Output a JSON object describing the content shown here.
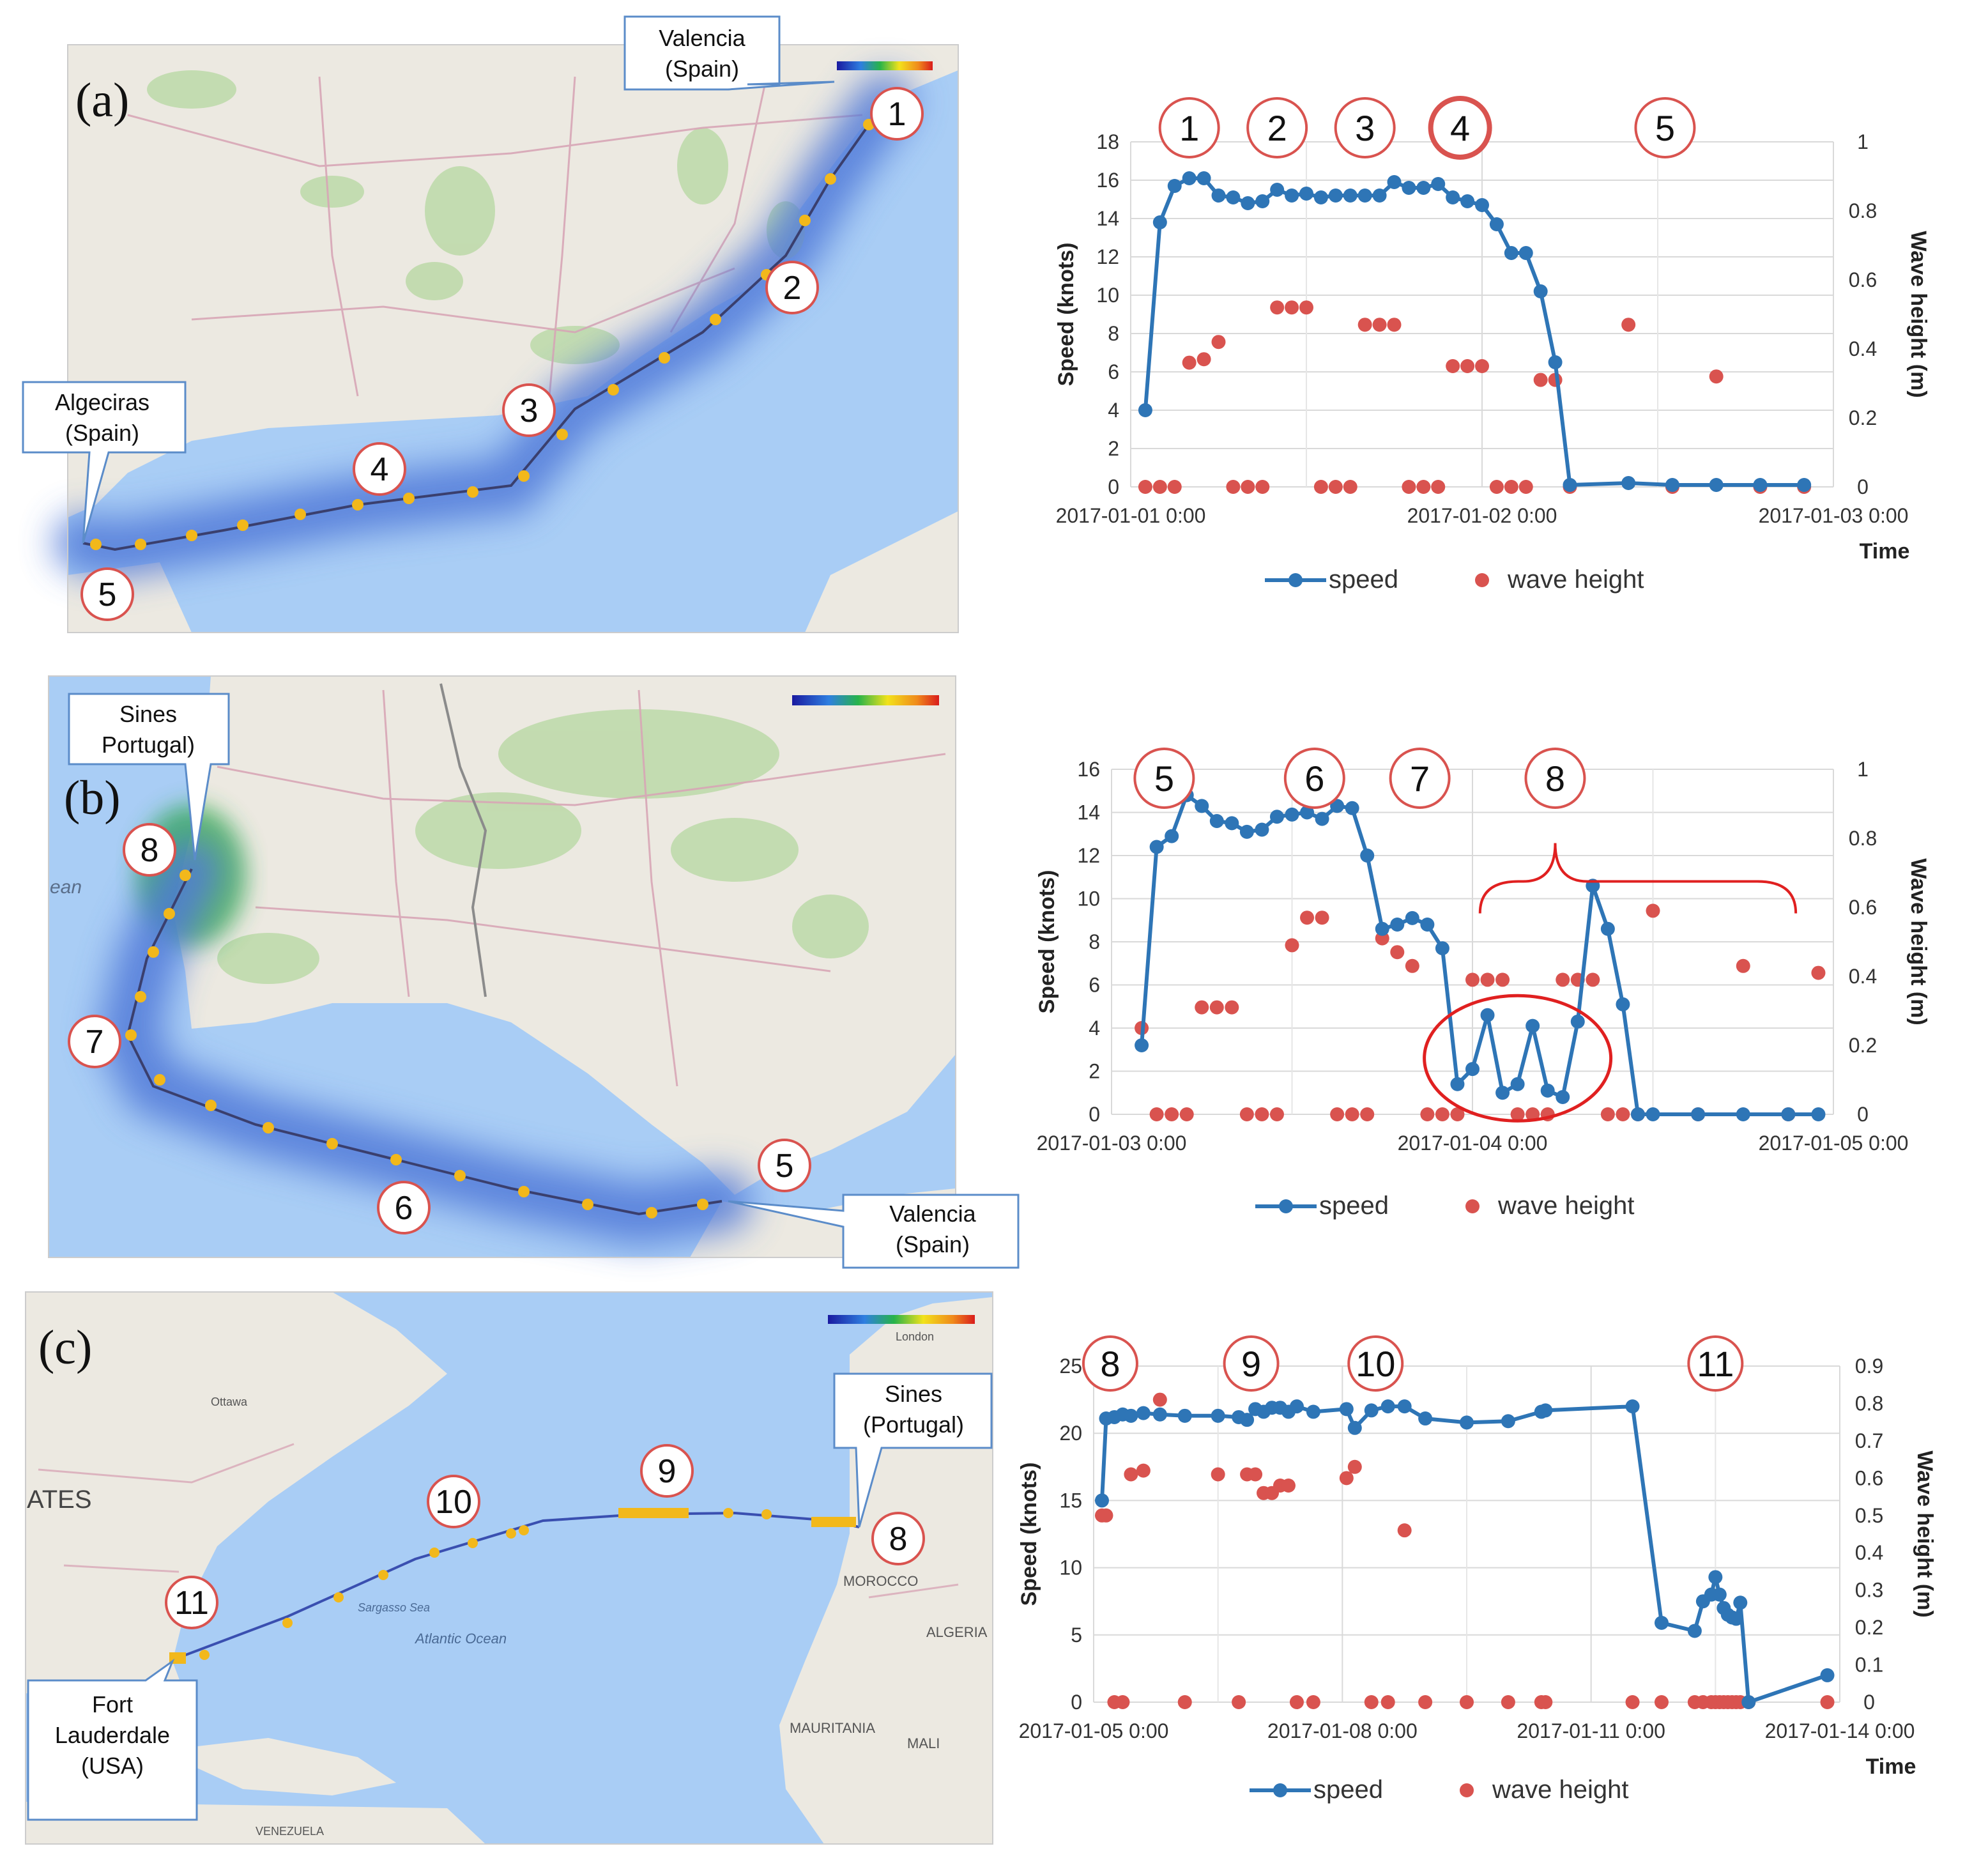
{
  "figure": {
    "panels": [
      {
        "label": "(a)",
        "map": {
          "labels": [
            {
              "text": "Valencia\n(Spain)"
            },
            {
              "text": "Algeciras\n(Spain)"
            }
          ],
          "waypoints": [
            "1",
            "2",
            "3",
            "4",
            "5"
          ]
        }
      },
      {
        "label": "(b)",
        "map": {
          "labels": [
            {
              "text": "Sines\nPortugal)"
            },
            {
              "text": "Valencia\n(Spain)"
            }
          ],
          "waypoints": [
            "5",
            "6",
            "7",
            "8"
          ],
          "place_text": [
            "ean"
          ]
        }
      },
      {
        "label": "(c)",
        "map": {
          "labels": [
            {
              "text": "Sines\n(Portugal)"
            },
            {
              "text": "Fort\nLauderdale\n(USA)"
            }
          ],
          "waypoints": [
            "8",
            "9",
            "10",
            "11"
          ],
          "place_text": [
            "ATES",
            "MOROCCO",
            "ALGERIA",
            "MAURITANIA",
            "MALI",
            "Atlantic Ocean",
            "Sargasso Sea",
            "VENEZUELA",
            "London",
            "Ottawa"
          ]
        }
      }
    ],
    "colors": {
      "speed": "#2e75b6",
      "wave": "#d9534f",
      "marker_ring": "#d9534f",
      "sea": "#a9cdf5",
      "land": "#ece9e1",
      "route_glow": "#4f78d8"
    }
  },
  "chart_data": [
    {
      "type": "line",
      "panel": "(a)",
      "xlabel": "Time",
      "ylabel": "Speed (knots)",
      "y2label": "Wave height (m)",
      "xlim": [
        0,
        48
      ],
      "ylim": [
        0,
        18
      ],
      "y2lim": [
        0,
        1
      ],
      "xticks": [
        0,
        24,
        48
      ],
      "xticklabels": [
        "2017-01-01 0:00",
        "2017-01-02 0:00",
        "2017-01-03 0:00"
      ],
      "yticks": [
        "0",
        "2",
        "4",
        "6",
        "8",
        "10",
        "12",
        "14",
        "16",
        "18"
      ],
      "y2ticks": [
        "0",
        "0.2",
        "0.4",
        "0.6",
        "0.8",
        "1"
      ],
      "legend": [
        "speed",
        "wave height"
      ],
      "legend_position": "bottom",
      "grid": true,
      "markers": [
        {
          "label": "1",
          "x": 4
        },
        {
          "label": "2",
          "x": 10
        },
        {
          "label": "3",
          "x": 16
        },
        {
          "label": "4",
          "x": 22.5,
          "highlight": true
        },
        {
          "label": "5",
          "x": 36.5
        }
      ],
      "series": [
        {
          "name": "speed",
          "axis": "left",
          "x": [
            1,
            2,
            3,
            4,
            5,
            6,
            7,
            8,
            9,
            10,
            11,
            12,
            13,
            14,
            15,
            16,
            17,
            18,
            19,
            20,
            21,
            22,
            23,
            24,
            25,
            26,
            27,
            28,
            29,
            30,
            34,
            37,
            40,
            43,
            46
          ],
          "y": [
            4,
            13.8,
            15.7,
            16.1,
            16.1,
            15.2,
            15.1,
            14.8,
            14.9,
            15.5,
            15.2,
            15.3,
            15.1,
            15.2,
            15.2,
            15.2,
            15.2,
            15.9,
            15.6,
            15.6,
            15.8,
            15.1,
            14.9,
            14.7,
            13.7,
            12.2,
            12.2,
            10.2,
            6.5,
            0.1,
            0.2,
            0.1,
            0.1,
            0.1,
            0.1
          ]
        },
        {
          "name": "wave height",
          "axis": "right",
          "x": [
            1,
            2,
            3,
            4,
            5,
            6,
            7,
            8,
            9,
            10,
            11,
            12,
            13,
            14,
            15,
            16,
            17,
            18,
            19,
            20,
            21,
            22,
            23,
            24,
            25,
            26,
            27,
            28,
            29,
            30,
            34,
            37,
            40,
            43,
            46
          ],
          "y": [
            0,
            0,
            0,
            0.36,
            0.37,
            0.42,
            0,
            0,
            0,
            0.52,
            0.52,
            0.52,
            0,
            0,
            0,
            0.47,
            0.47,
            0.47,
            0,
            0,
            0,
            0.35,
            0.35,
            0.35,
            0,
            0,
            0,
            0.31,
            0.31,
            0,
            0.47,
            0,
            0.32,
            0,
            0
          ]
        }
      ]
    },
    {
      "type": "line",
      "panel": "(b)",
      "xlabel": "",
      "ylabel": "Speed (knots)",
      "y2label": "Wave height (m)",
      "xlim": [
        0,
        48
      ],
      "ylim": [
        0,
        16
      ],
      "y2lim": [
        0,
        1
      ],
      "xticks": [
        0,
        24,
        48
      ],
      "xticklabels": [
        "2017-01-03 0:00",
        "2017-01-04 0:00",
        "2017-01-05 0:00"
      ],
      "yticks": [
        "0",
        "2",
        "4",
        "6",
        "8",
        "10",
        "12",
        "14",
        "16"
      ],
      "y2ticks": [
        "0",
        "0.2",
        "0.4",
        "0.6",
        "0.8",
        "1"
      ],
      "legend": [
        "speed",
        "wave height"
      ],
      "legend_position": "bottom",
      "grid": true,
      "markers": [
        {
          "label": "5",
          "x": 3.5
        },
        {
          "label": "6",
          "x": 13.5
        },
        {
          "label": "7",
          "x": 20.5
        },
        {
          "label": "8",
          "x": 29.5
        }
      ],
      "series": [
        {
          "name": "speed",
          "axis": "left",
          "x": [
            2,
            3,
            4,
            5,
            6,
            7,
            8,
            9,
            10,
            11,
            12,
            13,
            14,
            15,
            16,
            17,
            18,
            19,
            20,
            21,
            22,
            23,
            24,
            25,
            26,
            27,
            28,
            29,
            30,
            31,
            32,
            33,
            34,
            35,
            36,
            39,
            42,
            45,
            47
          ],
          "y": [
            3.2,
            12.4,
            12.9,
            14.8,
            14.3,
            13.6,
            13.5,
            13.1,
            13.2,
            13.8,
            13.9,
            14.0,
            13.7,
            14.3,
            14.2,
            12.0,
            8.6,
            8.8,
            9.1,
            8.8,
            7.7,
            1.4,
            2.1,
            4.6,
            1.0,
            1.4,
            4.1,
            1.1,
            0.8,
            4.3,
            10.6,
            8.6,
            5.1,
            0,
            0,
            0,
            0,
            0,
            0
          ]
        },
        {
          "name": "wave height",
          "axis": "right",
          "x": [
            2,
            3,
            4,
            5,
            6,
            7,
            8,
            9,
            10,
            11,
            12,
            13,
            14,
            15,
            16,
            17,
            18,
            19,
            20,
            21,
            22,
            23,
            24,
            25,
            26,
            27,
            28,
            29,
            30,
            31,
            32,
            33,
            34,
            35,
            36,
            39,
            42,
            45,
            47
          ],
          "y": [
            0.25,
            0,
            0,
            0,
            0.31,
            0.31,
            0.31,
            0,
            0,
            0,
            0.49,
            0.57,
            0.57,
            0,
            0,
            0,
            0.51,
            0.47,
            0.43,
            0,
            0,
            0,
            0.39,
            0.39,
            0.39,
            0,
            0,
            0,
            0.39,
            0.39,
            0.39,
            0,
            0,
            0,
            0.59,
            0,
            0.43,
            0,
            0.41
          ]
        }
      ]
    },
    {
      "type": "line",
      "panel": "(c)",
      "xlabel": "Time",
      "ylabel": "Speed (knots)",
      "y2label": "Wave height (m)",
      "xlim": [
        0,
        9
      ],
      "ylim": [
        0,
        25
      ],
      "y2lim": [
        0,
        0.9
      ],
      "xticks": [
        0,
        3,
        6,
        9
      ],
      "xticklabels": [
        "2017-01-05 0:00",
        "2017-01-08 0:00",
        "2017-01-11 0:00",
        "2017-01-14 0:00"
      ],
      "yticks": [
        "0",
        "5",
        "10",
        "15",
        "20",
        "25"
      ],
      "y2ticks": [
        "0",
        "0.1",
        "0.2",
        "0.3",
        "0.4",
        "0.5",
        "0.6",
        "0.7",
        "0.8",
        "0.9"
      ],
      "legend": [
        "speed",
        "wave height"
      ],
      "legend_position": "bottom",
      "grid": true,
      "markers": [
        {
          "label": "8",
          "x": 0.2
        },
        {
          "label": "9",
          "x": 1.9
        },
        {
          "label": "10",
          "x": 3.4
        },
        {
          "label": "11",
          "x": 7.5
        }
      ],
      "series": [
        {
          "name": "speed",
          "axis": "left",
          "x": [
            0.1,
            0.15,
            0.25,
            0.35,
            0.45,
            0.6,
            0.8,
            1.1,
            1.5,
            1.75,
            1.85,
            1.95,
            2.05,
            2.15,
            2.25,
            2.35,
            2.45,
            2.65,
            3.05,
            3.15,
            3.35,
            3.55,
            3.75,
            4.0,
            4.5,
            5.0,
            5.4,
            5.45,
            6.5,
            6.85,
            7.25,
            7.35,
            7.45,
            7.5,
            7.55,
            7.6,
            7.65,
            7.7,
            7.75,
            7.8,
            7.9,
            8.85
          ],
          "y": [
            15,
            21.1,
            21.2,
            21.4,
            21.3,
            21.5,
            21.4,
            21.3,
            21.3,
            21.2,
            21.0,
            21.8,
            21.6,
            21.9,
            21.9,
            21.6,
            22.0,
            21.6,
            21.8,
            20.4,
            21.7,
            22.0,
            22.0,
            21.1,
            20.8,
            20.9,
            21.6,
            21.7,
            22.0,
            5.9,
            5.3,
            7.5,
            8.0,
            9.3,
            8.0,
            7.0,
            6.5,
            6.3,
            6.2,
            7.4,
            0,
            2
          ]
        },
        {
          "name": "wave height",
          "axis": "right",
          "x": [
            0.1,
            0.15,
            0.25,
            0.35,
            0.45,
            0.6,
            0.8,
            1.1,
            1.5,
            1.75,
            1.85,
            1.95,
            2.05,
            2.15,
            2.25,
            2.35,
            2.45,
            2.65,
            3.05,
            3.15,
            3.35,
            3.55,
            3.75,
            4.0,
            4.5,
            5.0,
            5.4,
            5.45,
            6.5,
            6.85,
            7.25,
            7.35,
            7.45,
            7.5,
            7.55,
            7.6,
            7.65,
            7.7,
            7.75,
            7.8,
            7.9,
            8.85
          ],
          "y": [
            0.5,
            0.5,
            0,
            0,
            0.61,
            0.62,
            0.81,
            0,
            0.61,
            0,
            0.61,
            0.61,
            0.56,
            0.56,
            0.58,
            0.58,
            0,
            0,
            0.6,
            0.63,
            0,
            0,
            0.46,
            0,
            0,
            0,
            0,
            0,
            0,
            0,
            0,
            0,
            0,
            0,
            0,
            0,
            0,
            0,
            0,
            0,
            0,
            0
          ]
        }
      ]
    }
  ]
}
